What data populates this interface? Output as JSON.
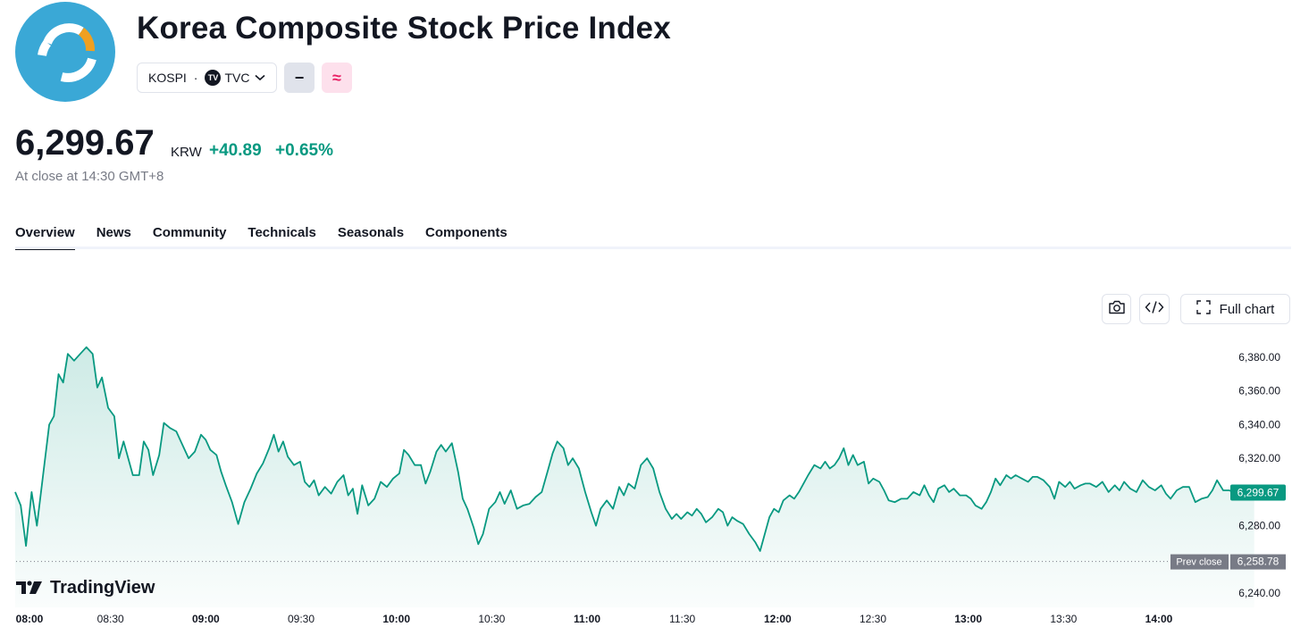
{
  "header": {
    "title": "Korea Composite Stock Price Index",
    "symbol": "KOSPI",
    "separator": "·",
    "exchange": "TVC",
    "icon_minus": "−",
    "icon_approx": "≈"
  },
  "quote": {
    "price": "6,299.67",
    "currency": "KRW",
    "change": "+40.89",
    "change_pct": "+0.65%",
    "close_time": "At close at 14:30 GMT+8"
  },
  "tabs": [
    {
      "label": "Overview",
      "active": true
    },
    {
      "label": "News",
      "active": false
    },
    {
      "label": "Community",
      "active": false
    },
    {
      "label": "Technicals",
      "active": false
    },
    {
      "label": "Seasonals",
      "active": false
    },
    {
      "label": "Components",
      "active": false
    }
  ],
  "toolbar": {
    "camera_icon": "camera-icon",
    "embed_icon": "embed-code-icon",
    "full_chart_label": "Full chart"
  },
  "chart_data": {
    "type": "area",
    "x_ticks": [
      "08:00",
      "08:30",
      "09:00",
      "09:30",
      "10:00",
      "10:30",
      "11:00",
      "11:30",
      "12:00",
      "12:30",
      "13:00",
      "13:30",
      "14:00"
    ],
    "x_ticks_bold": [
      "08:00",
      "09:00",
      "10:00",
      "11:00",
      "12:00",
      "13:00",
      "14:00"
    ],
    "y_ticks": [
      "6,380.00",
      "6,360.00",
      "6,340.00",
      "6,320.00",
      "6,280.00",
      "6,240.00"
    ],
    "y_tick_values": [
      6380,
      6360,
      6340,
      6320,
      6280,
      6240
    ],
    "ylim": [
      6232,
      6390
    ],
    "xlim_minutes": [
      0,
      395
    ],
    "last_price_label": "6,299.67",
    "last_price": 6299.67,
    "prev_close_label": "Prev close",
    "prev_close_value_label": "6,258.78",
    "prev_close": 6258.78,
    "series": [
      {
        "color": "#089981",
        "points": [
          [
            0,
            6300
          ],
          [
            1.8,
            6292
          ],
          [
            3.5,
            6268
          ],
          [
            5.3,
            6300
          ],
          [
            7,
            6280
          ],
          [
            9,
            6310
          ],
          [
            11,
            6340
          ],
          [
            12.5,
            6345
          ],
          [
            14,
            6370
          ],
          [
            15.5,
            6365
          ],
          [
            17,
            6382
          ],
          [
            19,
            6378
          ],
          [
            21,
            6382
          ],
          [
            23,
            6386
          ],
          [
            25,
            6382
          ],
          [
            26.5,
            6362
          ],
          [
            28,
            6368
          ],
          [
            30,
            6350
          ],
          [
            32,
            6345
          ],
          [
            33.5,
            6320
          ],
          [
            35,
            6330
          ],
          [
            36.5,
            6320
          ],
          [
            38,
            6310
          ],
          [
            40,
            6310
          ],
          [
            41.5,
            6330
          ],
          [
            43,
            6325
          ],
          [
            44.5,
            6310
          ],
          [
            46.5,
            6322
          ],
          [
            48,
            6341
          ],
          [
            50,
            6338
          ],
          [
            52,
            6336
          ],
          [
            54,
            6328
          ],
          [
            56,
            6320
          ],
          [
            58,
            6324
          ],
          [
            60,
            6334
          ],
          [
            61.5,
            6331
          ],
          [
            63,
            6325
          ],
          [
            65,
            6322
          ],
          [
            66.5,
            6312
          ],
          [
            68,
            6304
          ],
          [
            70,
            6294
          ],
          [
            72,
            6281
          ],
          [
            74,
            6294
          ],
          [
            76,
            6302
          ],
          [
            78,
            6311
          ],
          [
            80,
            6317
          ],
          [
            82,
            6326
          ],
          [
            83.5,
            6334
          ],
          [
            85,
            6324
          ],
          [
            86.5,
            6330
          ],
          [
            88,
            6321
          ],
          [
            90,
            6316
          ],
          [
            92,
            6318
          ],
          [
            93.5,
            6306
          ],
          [
            95,
            6303
          ],
          [
            96.5,
            6307
          ],
          [
            98,
            6298
          ],
          [
            100,
            6303
          ],
          [
            102,
            6299
          ],
          [
            104,
            6306
          ],
          [
            106,
            6310
          ],
          [
            107.5,
            6298
          ],
          [
            109,
            6302
          ],
          [
            110.5,
            6287
          ],
          [
            112,
            6304
          ],
          [
            114,
            6292
          ],
          [
            116,
            6296
          ],
          [
            118,
            6306
          ],
          [
            120,
            6303
          ],
          [
            122,
            6308
          ],
          [
            124,
            6311
          ],
          [
            125.5,
            6325
          ],
          [
            127,
            6322
          ],
          [
            129,
            6316
          ],
          [
            131,
            6316
          ],
          [
            132.5,
            6305
          ],
          [
            134,
            6312
          ],
          [
            136,
            6324
          ],
          [
            137.5,
            6328
          ],
          [
            139,
            6324
          ],
          [
            141,
            6329
          ],
          [
            143,
            6312
          ],
          [
            144.5,
            6296
          ],
          [
            146,
            6290
          ],
          [
            148,
            6279
          ],
          [
            149.5,
            6269
          ],
          [
            151,
            6275
          ],
          [
            153,
            6290
          ],
          [
            155,
            6294
          ],
          [
            156.5,
            6300
          ],
          [
            158,
            6293
          ],
          [
            160,
            6301
          ],
          [
            162,
            6290
          ],
          [
            164,
            6292
          ],
          [
            166,
            6293
          ],
          [
            168,
            6297
          ],
          [
            170,
            6300
          ],
          [
            172,
            6313
          ],
          [
            173.5,
            6323
          ],
          [
            175,
            6330
          ],
          [
            177,
            6326
          ],
          [
            178.5,
            6316
          ],
          [
            180,
            6320
          ],
          [
            182,
            6314
          ],
          [
            184,
            6300
          ],
          [
            186,
            6288
          ],
          [
            187.5,
            6280
          ],
          [
            189,
            6290
          ],
          [
            191,
            6295
          ],
          [
            193,
            6290
          ],
          [
            195,
            6303
          ],
          [
            196.5,
            6298
          ],
          [
            198,
            6305
          ],
          [
            200,
            6302
          ],
          [
            202,
            6316
          ],
          [
            204,
            6320
          ],
          [
            206,
            6314
          ],
          [
            208,
            6300
          ],
          [
            210,
            6290
          ],
          [
            212,
            6284
          ],
          [
            213.5,
            6287
          ],
          [
            215,
            6284
          ],
          [
            217,
            6288
          ],
          [
            218.5,
            6286
          ],
          [
            220,
            6290
          ],
          [
            221.5,
            6287
          ],
          [
            223,
            6282
          ],
          [
            225,
            6285
          ],
          [
            227,
            6290
          ],
          [
            228.5,
            6288
          ],
          [
            230,
            6280
          ],
          [
            231.5,
            6285
          ],
          [
            233,
            6283
          ],
          [
            235,
            6281
          ],
          [
            237,
            6275
          ],
          [
            239,
            6270
          ],
          [
            240.5,
            6265
          ],
          [
            242,
            6275
          ],
          [
            243.5,
            6285
          ],
          [
            245,
            6290
          ],
          [
            246.5,
            6288
          ],
          [
            248,
            6295
          ],
          [
            250,
            6298
          ],
          [
            251.5,
            6296
          ],
          [
            253,
            6300
          ],
          [
            254.5,
            6305
          ],
          [
            256,
            6310
          ],
          [
            258,
            6316
          ],
          [
            260,
            6314
          ],
          [
            261.5,
            6318
          ],
          [
            263,
            6314
          ],
          [
            264.5,
            6316
          ],
          [
            266,
            6320
          ],
          [
            267.5,
            6326
          ],
          [
            269,
            6316
          ],
          [
            270.5,
            6322
          ],
          [
            272,
            6316
          ],
          [
            274,
            6318
          ],
          [
            275.5,
            6305
          ],
          [
            277,
            6308
          ],
          [
            279,
            6306
          ],
          [
            280.5,
            6301
          ],
          [
            282,
            6295
          ],
          [
            284,
            6294
          ],
          [
            286,
            6296
          ],
          [
            288,
            6296
          ],
          [
            290,
            6300
          ],
          [
            292,
            6298
          ],
          [
            293.5,
            6304
          ],
          [
            295,
            6298
          ],
          [
            296.5,
            6294
          ],
          [
            298,
            6302
          ],
          [
            300,
            6304
          ],
          [
            301.5,
            6300
          ],
          [
            303,
            6302
          ],
          [
            305,
            6298
          ],
          [
            307,
            6298
          ],
          [
            308.5,
            6296
          ],
          [
            310,
            6292
          ],
          [
            312,
            6290
          ],
          [
            313.5,
            6294
          ],
          [
            315,
            6300
          ],
          [
            316.5,
            6308
          ],
          [
            318,
            6304
          ],
          [
            320,
            6310
          ],
          [
            321.5,
            6308
          ],
          [
            323,
            6310
          ],
          [
            325,
            6308
          ],
          [
            327,
            6306
          ],
          [
            328.5,
            6309
          ],
          [
            330,
            6309
          ],
          [
            332,
            6307
          ],
          [
            334,
            6303
          ],
          [
            335.5,
            6296
          ],
          [
            337,
            6306
          ],
          [
            339,
            6303
          ],
          [
            340.5,
            6306
          ],
          [
            342,
            6302
          ],
          [
            344,
            6304
          ],
          [
            345.5,
            6305
          ],
          [
            347,
            6305
          ],
          [
            349,
            6303
          ],
          [
            351,
            6306
          ],
          [
            353,
            6300
          ],
          [
            355,
            6304
          ],
          [
            356.5,
            6301
          ],
          [
            358,
            6306
          ],
          [
            360,
            6302
          ],
          [
            362,
            6300
          ],
          [
            364,
            6307
          ],
          [
            366,
            6303
          ],
          [
            368,
            6301
          ],
          [
            370,
            6304
          ],
          [
            371.5,
            6299
          ],
          [
            373,
            6296
          ],
          [
            375,
            6301
          ],
          [
            377,
            6303
          ],
          [
            379,
            6303
          ],
          [
            381,
            6294
          ],
          [
            383,
            6296
          ],
          [
            385,
            6297
          ],
          [
            386.5,
            6301
          ],
          [
            388,
            6307
          ],
          [
            390,
            6301
          ],
          [
            392,
            6301
          ],
          [
            394,
            6299
          ],
          [
            396,
            6300
          ],
          [
            398,
            6298
          ],
          [
            400,
            6299.7
          ]
        ]
      }
    ]
  }
}
